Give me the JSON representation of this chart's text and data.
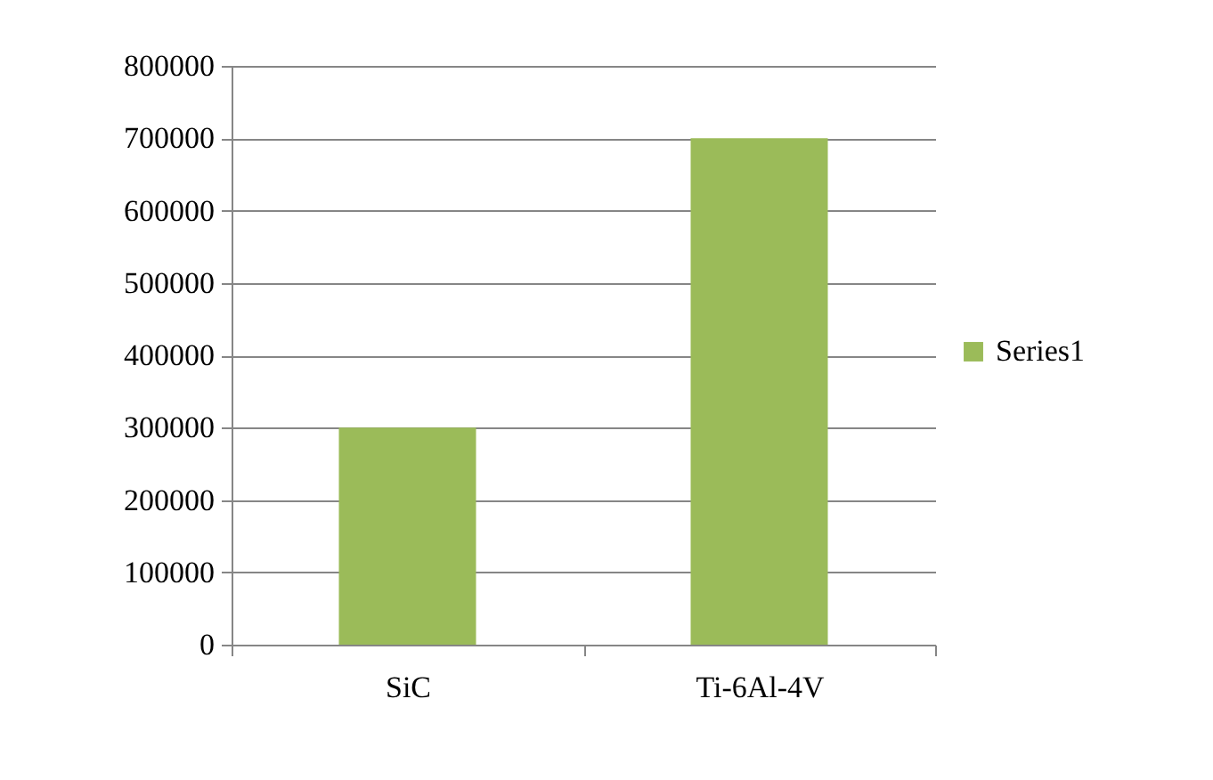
{
  "chart_data": {
    "type": "bar",
    "categories": [
      "SiC",
      "Ti-6Al-4V"
    ],
    "series": [
      {
        "name": "Series1",
        "color": "#9bbb59",
        "values": [
          300000,
          700000
        ]
      }
    ],
    "ylim": [
      0,
      800000
    ],
    "yticks": [
      0,
      100000,
      200000,
      300000,
      400000,
      500000,
      600000,
      700000,
      800000
    ],
    "grid": "y",
    "legend": "right"
  }
}
